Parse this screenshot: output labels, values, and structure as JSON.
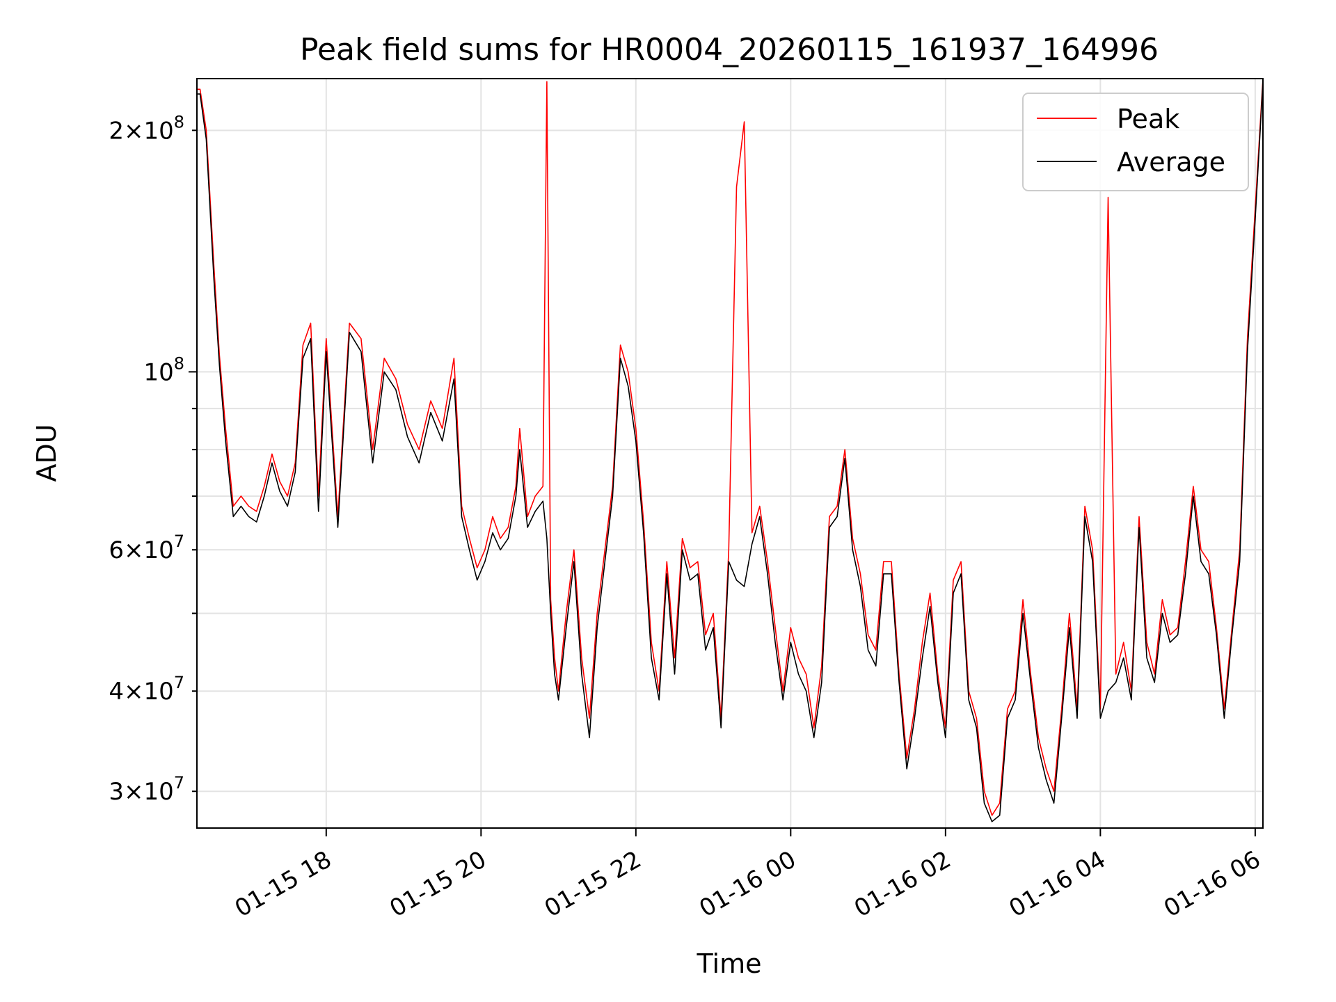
{
  "chart_data": {
    "type": "line",
    "title": "Peak field sums for HR0004_20260115_161937_164996",
    "xlabel": "Time",
    "ylabel": "ADU",
    "yscale": "log",
    "ylim": [
      27000000,
      232000000
    ],
    "xlim_hours": [
      16.33,
      30.1
    ],
    "x_unit": "hours since 2026-01-15 00:00",
    "grid": true,
    "legend_loc": "upper right",
    "xticks": [
      {
        "value": 18,
        "label": "01-15 18"
      },
      {
        "value": 20,
        "label": "01-15 20"
      },
      {
        "value": 22,
        "label": "01-15 22"
      },
      {
        "value": 24,
        "label": "01-16 00"
      },
      {
        "value": 26,
        "label": "01-16 02"
      },
      {
        "value": 28,
        "label": "01-16 04"
      },
      {
        "value": 30,
        "label": "01-16 06"
      }
    ],
    "yticks_major": [
      {
        "value": 100000000,
        "mant": "",
        "exp": "8"
      }
    ],
    "yticks_minor": [
      {
        "value": 30000000,
        "mant": "3",
        "exp": "7"
      },
      {
        "value": 40000000,
        "mant": "4",
        "exp": "7"
      },
      {
        "value": 60000000,
        "mant": "6",
        "exp": "7"
      },
      {
        "value": 200000000,
        "mant": "2",
        "exp": "8"
      }
    ],
    "yticks_minor_unlabeled": [
      50000000,
      70000000,
      80000000,
      90000000
    ],
    "series": [
      {
        "name": "Peak",
        "color": "#ff0000",
        "x": [
          16.33,
          16.37,
          16.45,
          16.55,
          16.62,
          16.7,
          16.8,
          16.9,
          17.0,
          17.1,
          17.2,
          17.3,
          17.4,
          17.5,
          17.6,
          17.7,
          17.8,
          17.9,
          18.0,
          18.15,
          18.3,
          18.45,
          18.6,
          18.75,
          18.9,
          19.05,
          19.2,
          19.35,
          19.5,
          19.65,
          19.75,
          19.85,
          19.95,
          20.05,
          20.15,
          20.25,
          20.35,
          20.45,
          20.5,
          20.6,
          20.7,
          20.8,
          20.85,
          20.9,
          20.95,
          21.0,
          21.1,
          21.2,
          21.3,
          21.4,
          21.5,
          21.6,
          21.7,
          21.8,
          21.9,
          22.0,
          22.1,
          22.2,
          22.3,
          22.4,
          22.5,
          22.6,
          22.7,
          22.8,
          22.9,
          23.0,
          23.1,
          23.2,
          23.3,
          23.4,
          23.5,
          23.6,
          23.7,
          23.8,
          23.9,
          24.0,
          24.1,
          24.2,
          24.3,
          24.4,
          24.5,
          24.6,
          24.7,
          24.8,
          24.9,
          25.0,
          25.1,
          25.2,
          25.3,
          25.4,
          25.5,
          25.6,
          25.7,
          25.8,
          25.9,
          26.0,
          26.1,
          26.2,
          26.3,
          26.4,
          26.5,
          26.6,
          26.7,
          26.8,
          26.9,
          27.0,
          27.1,
          27.2,
          27.3,
          27.4,
          27.5,
          27.6,
          27.7,
          27.8,
          27.9,
          28.0,
          28.1,
          28.2,
          28.3,
          28.4,
          28.5,
          28.6,
          28.7,
          28.8,
          28.9,
          29.0,
          29.1,
          29.2,
          29.3,
          29.4,
          29.5,
          29.6,
          29.7,
          29.8,
          29.9,
          30.0,
          30.1
        ],
        "values": [
          225000000,
          225000000,
          200000000,
          135000000,
          105000000,
          85000000,
          68000000,
          70000000,
          68000000,
          67000000,
          72000000,
          79000000,
          73000000,
          70000000,
          77000000,
          108000000,
          115000000,
          70000000,
          110000000,
          66000000,
          115000000,
          110000000,
          80000000,
          104000000,
          98000000,
          86000000,
          80000000,
          92000000,
          85000000,
          104000000,
          68000000,
          62000000,
          57000000,
          60000000,
          66000000,
          62000000,
          64000000,
          72000000,
          85000000,
          66000000,
          70000000,
          72000000,
          230000000,
          52000000,
          44000000,
          40000000,
          50000000,
          60000000,
          44000000,
          37000000,
          50000000,
          60000000,
          72000000,
          108000000,
          100000000,
          85000000,
          65000000,
          46000000,
          40000000,
          58000000,
          44000000,
          62000000,
          57000000,
          58000000,
          47000000,
          50000000,
          37000000,
          60000000,
          170000000,
          205000000,
          63000000,
          68000000,
          58000000,
          48000000,
          40000000,
          48000000,
          44000000,
          42000000,
          36000000,
          43000000,
          66000000,
          68000000,
          80000000,
          62000000,
          56000000,
          47000000,
          45000000,
          58000000,
          58000000,
          42000000,
          33000000,
          38000000,
          46000000,
          53000000,
          42000000,
          36000000,
          55000000,
          58000000,
          40000000,
          37000000,
          30000000,
          28000000,
          29000000,
          38000000,
          40000000,
          52000000,
          42000000,
          35000000,
          32000000,
          30000000,
          38000000,
          50000000,
          38000000,
          68000000,
          60000000,
          38000000,
          165000000,
          42000000,
          46000000,
          40000000,
          66000000,
          46000000,
          42000000,
          52000000,
          47000000,
          48000000,
          58000000,
          72000000,
          60000000,
          58000000,
          48000000,
          38000000,
          48000000,
          60000000,
          110000000,
          160000000,
          232000000
        ]
      },
      {
        "name": "Average",
        "color": "#000000",
        "x": [
          16.33,
          16.37,
          16.45,
          16.55,
          16.62,
          16.7,
          16.8,
          16.9,
          17.0,
          17.1,
          17.2,
          17.3,
          17.4,
          17.5,
          17.6,
          17.7,
          17.8,
          17.9,
          18.0,
          18.15,
          18.3,
          18.45,
          18.6,
          18.75,
          18.9,
          19.05,
          19.2,
          19.35,
          19.5,
          19.65,
          19.75,
          19.85,
          19.95,
          20.05,
          20.15,
          20.25,
          20.35,
          20.45,
          20.5,
          20.6,
          20.7,
          20.8,
          20.85,
          20.9,
          20.95,
          21.0,
          21.1,
          21.2,
          21.3,
          21.4,
          21.5,
          21.6,
          21.7,
          21.8,
          21.9,
          22.0,
          22.1,
          22.2,
          22.3,
          22.4,
          22.5,
          22.6,
          22.7,
          22.8,
          22.9,
          23.0,
          23.1,
          23.2,
          23.3,
          23.4,
          23.5,
          23.6,
          23.7,
          23.8,
          23.9,
          24.0,
          24.1,
          24.2,
          24.3,
          24.4,
          24.5,
          24.6,
          24.7,
          24.8,
          24.9,
          25.0,
          25.1,
          25.2,
          25.3,
          25.4,
          25.5,
          25.6,
          25.7,
          25.8,
          25.9,
          26.0,
          26.1,
          26.2,
          26.3,
          26.4,
          26.5,
          26.6,
          26.7,
          26.8,
          26.9,
          27.0,
          27.1,
          27.2,
          27.3,
          27.4,
          27.5,
          27.6,
          27.7,
          27.8,
          27.9,
          28.0,
          28.1,
          28.2,
          28.3,
          28.4,
          28.5,
          28.6,
          28.7,
          28.8,
          28.9,
          29.0,
          29.1,
          29.2,
          29.3,
          29.4,
          29.5,
          29.6,
          29.7,
          29.8,
          29.9,
          30.0,
          30.1
        ],
        "values": [
          222000000,
          222000000,
          195000000,
          130000000,
          102000000,
          82000000,
          66000000,
          68000000,
          66000000,
          65000000,
          70000000,
          77000000,
          71000000,
          68000000,
          75000000,
          104000000,
          110000000,
          67000000,
          106000000,
          64000000,
          112000000,
          106000000,
          77000000,
          100000000,
          95000000,
          83000000,
          77000000,
          89000000,
          82000000,
          98000000,
          66000000,
          60000000,
          55000000,
          58000000,
          63000000,
          60000000,
          62000000,
          70000000,
          80000000,
          64000000,
          67000000,
          69000000,
          62000000,
          50000000,
          42000000,
          39000000,
          48000000,
          58000000,
          42000000,
          35000000,
          48000000,
          58000000,
          70000000,
          104000000,
          96000000,
          82000000,
          63000000,
          44000000,
          39000000,
          56000000,
          42000000,
          60000000,
          55000000,
          56000000,
          45000000,
          48000000,
          36000000,
          58000000,
          55000000,
          54000000,
          61000000,
          66000000,
          56000000,
          46000000,
          39000000,
          46000000,
          42000000,
          40000000,
          35000000,
          41000000,
          64000000,
          66000000,
          78000000,
          60000000,
          54000000,
          45000000,
          43000000,
          56000000,
          56000000,
          41000000,
          32000000,
          37000000,
          44000000,
          51000000,
          41000000,
          35000000,
          53000000,
          56000000,
          39000000,
          36000000,
          29000000,
          27500000,
          28000000,
          37000000,
          39000000,
          50000000,
          41000000,
          34000000,
          31000000,
          29000000,
          37000000,
          48000000,
          37000000,
          66000000,
          58000000,
          37000000,
          40000000,
          41000000,
          44000000,
          39000000,
          64000000,
          44000000,
          41000000,
          50000000,
          46000000,
          47000000,
          56000000,
          70000000,
          58000000,
          56000000,
          47000000,
          37000000,
          47000000,
          58000000,
          106000000,
          155000000,
          230000000
        ]
      }
    ]
  }
}
